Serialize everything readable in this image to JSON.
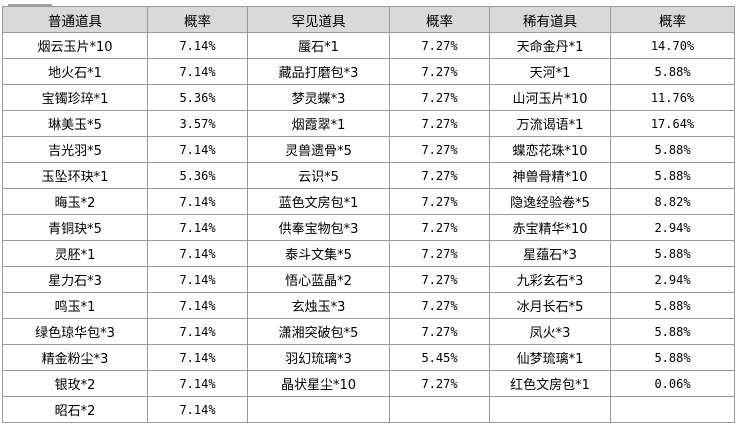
{
  "headers": [
    "普通道具",
    "概率",
    "罕见道具",
    "概率",
    "稀有道具",
    "概率"
  ],
  "rows": [
    [
      "烟云玉片*10",
      "7.14%",
      "蜃石*1",
      "7.27%",
      "天命金丹*1",
      "14.70%"
    ],
    [
      "地火石*1",
      "7.14%",
      "藏品打磨包*3",
      "7.27%",
      "天河*1",
      "5.88%"
    ],
    [
      "宝镯珍琗*1",
      "5.36%",
      "梦灵蝶*3",
      "7.27%",
      "山河玉片*10",
      "11.76%"
    ],
    [
      "琳美玉*5",
      "3.57%",
      "烟霞翠*1",
      "7.27%",
      "万流谒语*1",
      "17.64%"
    ],
    [
      "吉光羽*5",
      "7.14%",
      "灵兽遗骨*5",
      "7.27%",
      "蝶恋花珠*10",
      "5.88%"
    ],
    [
      "玉坠环玦*1",
      "5.36%",
      "云识*5",
      "7.27%",
      "神兽骨精*10",
      "5.88%"
    ],
    [
      "晦玉*2",
      "7.14%",
      "蓝色文房包*1",
      "7.27%",
      "隐逸经验卷*5",
      "8.82%"
    ],
    [
      "青铜玦*5",
      "7.14%",
      "供奉宝物包*3",
      "7.27%",
      "赤宝精华*10",
      "2.94%"
    ],
    [
      "灵胚*1",
      "7.14%",
      "泰斗文集*5",
      "7.27%",
      "星蕴石*3",
      "5.88%"
    ],
    [
      "星力石*3",
      "7.14%",
      "悟心蓝晶*2",
      "7.27%",
      "九彩玄石*3",
      "2.94%"
    ],
    [
      "鸣玉*1",
      "7.14%",
      "玄烛玉*3",
      "7.27%",
      "冰月长石*5",
      "5.88%"
    ],
    [
      "绿色琼华包*3",
      "7.14%",
      "潇湘突破包*5",
      "7.27%",
      "凤火*3",
      "5.88%"
    ],
    [
      "精金粉尘*3",
      "7.14%",
      "羽幻琉璃*3",
      "5.45%",
      "仙梦琉璃*1",
      "5.88%"
    ],
    [
      "银玫*2",
      "7.14%",
      "晶状星尘*10",
      "7.27%",
      "红色文房包*1",
      "0.06%"
    ],
    [
      "昭石*2",
      "7.14%",
      "",
      "",
      "",
      ""
    ]
  ]
}
